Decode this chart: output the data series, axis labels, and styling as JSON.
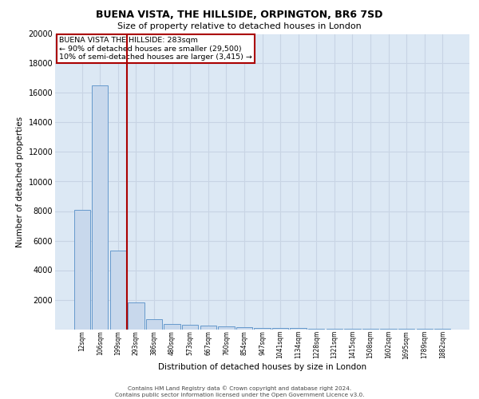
{
  "title_line1": "BUENA VISTA, THE HILLSIDE, ORPINGTON, BR6 7SD",
  "title_line2": "Size of property relative to detached houses in London",
  "xlabel": "Distribution of detached houses by size in London",
  "ylabel": "Number of detached properties",
  "bar_labels": [
    "12sqm",
    "106sqm",
    "199sqm",
    "293sqm",
    "386sqm",
    "480sqm",
    "573sqm",
    "667sqm",
    "760sqm",
    "854sqm",
    "947sqm",
    "1041sqm",
    "1134sqm",
    "1228sqm",
    "1321sqm",
    "1415sqm",
    "1508sqm",
    "1602sqm",
    "1695sqm",
    "1789sqm",
    "1882sqm"
  ],
  "bar_values": [
    8100,
    16500,
    5300,
    1800,
    700,
    350,
    280,
    230,
    200,
    150,
    100,
    80,
    60,
    40,
    30,
    20,
    15,
    10,
    8,
    5,
    3
  ],
  "bar_color": "#c8d8ec",
  "bar_edge_color": "#6699cc",
  "property_line_x": 2.5,
  "annotation_text": "BUENA VISTA THE HILLSIDE: 283sqm\n← 90% of detached houses are smaller (29,500)\n10% of semi-detached houses are larger (3,415) →",
  "annotation_box_color": "#aa0000",
  "ylim": [
    0,
    20000
  ],
  "yticks": [
    0,
    2000,
    4000,
    6000,
    8000,
    10000,
    12000,
    14000,
    16000,
    18000,
    20000
  ],
  "grid_color": "#c8d4e4",
  "background_color": "#dce8f4",
  "footer_line1": "Contains HM Land Registry data © Crown copyright and database right 2024.",
  "footer_line2": "Contains public sector information licensed under the Open Government Licence v3.0."
}
